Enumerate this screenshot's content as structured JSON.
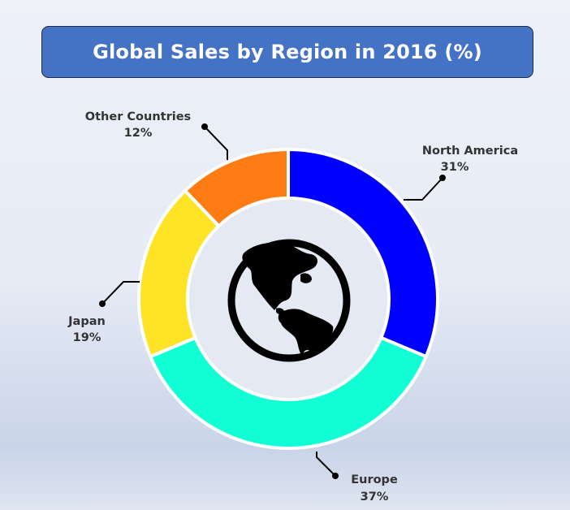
{
  "chart_data": {
    "type": "pie",
    "style": "donut",
    "title": "Global Sales by Region in 2016 (%)",
    "slices": [
      {
        "label": "North America",
        "value": 31,
        "value_label": "31%",
        "color": "#0000ff"
      },
      {
        "label": "Europe",
        "value": 37,
        "value_label": "37%",
        "color": "#12ffd6"
      },
      {
        "label": "Japan",
        "value": 19,
        "value_label": "19%",
        "color": "#ffe327"
      },
      {
        "label": "Other Countries",
        "value": 12,
        "value_label": "12%",
        "color": "#ff7b13"
      }
    ],
    "center_icon": "globe-americas-icon",
    "legend": "none",
    "grid": false
  },
  "colors": {
    "title_background": "#4472c4",
    "title_text": "#ffffff",
    "label_text": "#333333",
    "leader_line": "#000000",
    "donut_hole": "#e4e9f3"
  }
}
